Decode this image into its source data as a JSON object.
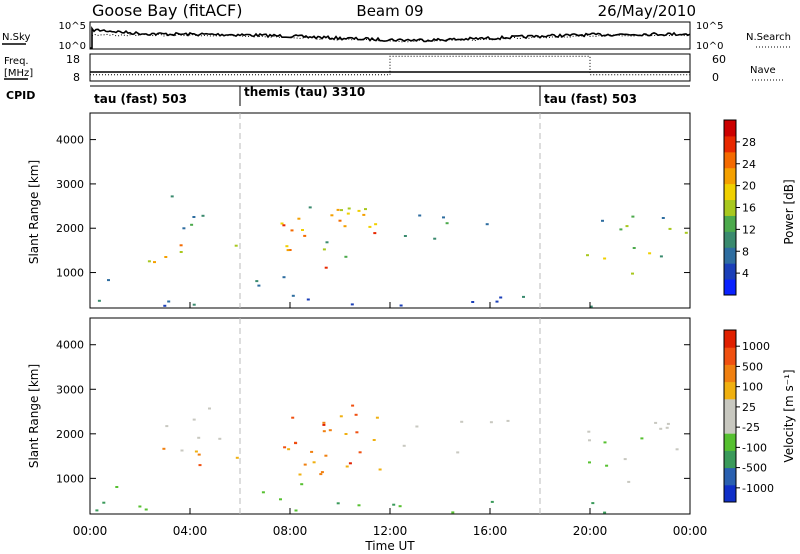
{
  "header": {
    "station": "Goose Bay (fitACF)",
    "beam": "Beam 09",
    "date": "26/May/2010"
  },
  "noise_panel": {
    "left_label": "N.Sky",
    "left_ticks": [
      "10^5",
      "10^0"
    ],
    "right_label": "N.Search",
    "right_ticks": [
      "10^5",
      "10^0"
    ]
  },
  "freq_panel": {
    "left_label_top": "Freq.",
    "left_label_bottom": "[MHz]",
    "left_ticks": [
      "18",
      "8"
    ],
    "right_label": "Nave",
    "right_ticks": [
      "60",
      "0"
    ],
    "nave_levels": [
      {
        "start_h": 0,
        "end_h": 12,
        "value": 14
      },
      {
        "start_h": 12,
        "end_h": 20,
        "value": 55
      },
      {
        "start_h": 20,
        "end_h": 24,
        "value": 14
      }
    ]
  },
  "cpid_panel": {
    "label": "CPID",
    "modes": [
      {
        "start_h": 0,
        "label": "tau (fast) 503"
      },
      {
        "start_h": 6,
        "label": "themis (tau) 3310"
      },
      {
        "start_h": 18,
        "label": "tau (fast) 503"
      }
    ]
  },
  "chart_data": [
    {
      "type": "heatmap",
      "name": "power",
      "ylabel": "Slant Range [km]",
      "ylim": [
        200,
        4600
      ],
      "yticks": [
        "1000",
        "2000",
        "3000",
        "4000"
      ],
      "xlim_hours": [
        0,
        24
      ],
      "colorbar": {
        "label": "Power [dB]",
        "tick_labels": [
          "4",
          "8",
          "12",
          "16",
          "20",
          "24",
          "28"
        ],
        "colors": [
          "#0a22ff",
          "#1b3fb8",
          "#2e6da0",
          "#3a8a6e",
          "#4caa4c",
          "#a8c81e",
          "#f0d000",
          "#f4a000",
          "#f46a00",
          "#e82800",
          "#cc0000"
        ]
      }
    },
    {
      "type": "heatmap",
      "name": "velocity",
      "ylabel": "Slant Range [km]",
      "ylim": [
        200,
        4600
      ],
      "yticks": [
        "1000",
        "2000",
        "3000",
        "4000"
      ],
      "xlim_hours": [
        0,
        24
      ],
      "colorbar": {
        "label": "Velocity [m s⁻¹]",
        "tick_labels": [
          "1000",
          "500",
          "100",
          "25",
          "-25",
          "-100",
          "-500",
          "-1000"
        ],
        "colors": [
          "#1030c8",
          "#2a60b0",
          "#3a9a5a",
          "#56c030",
          "#c8c8c0",
          "#c8c8c0",
          "#f0b010",
          "#f08010",
          "#f05010",
          "#e02000"
        ]
      }
    }
  ],
  "xaxis": {
    "label": "Time UT",
    "tick_labels": [
      "00:00",
      "04:00",
      "08:00",
      "12:00",
      "16:00",
      "20:00",
      "00:00"
    ]
  }
}
